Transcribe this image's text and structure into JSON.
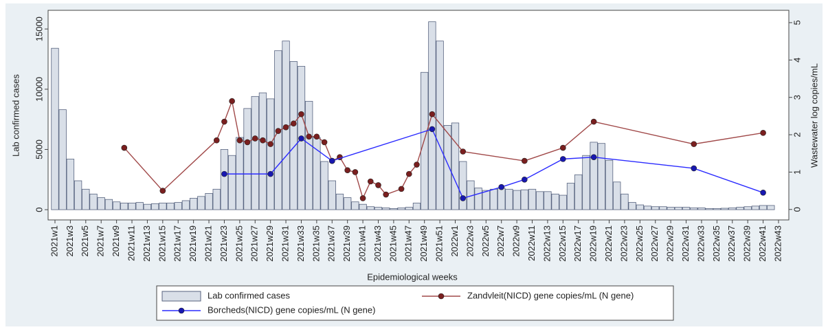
{
  "chart_data": {
    "type": "bar-line",
    "x_label": "Epidemiological weeks",
    "y_label": "Lab confirmed cases",
    "y2_label": "Wastewater log copies/mL",
    "categories": [
      "2021w1",
      null,
      "2021w3",
      null,
      "2021w5",
      null,
      "2021w7",
      null,
      "2021w9",
      null,
      "2021w11",
      null,
      "2021w13",
      null,
      "2021w15",
      null,
      "2021w17",
      null,
      "2021w19",
      null,
      "2021w21",
      null,
      "2021w23",
      null,
      "2021w25",
      null,
      "2021w27",
      null,
      "2021w29",
      null,
      "2021w31",
      null,
      "2021w33",
      null,
      "2021w35",
      null,
      "2021w37",
      null,
      "2021w39",
      null,
      "2021w41",
      null,
      "2021w43",
      null,
      "2021w45",
      null,
      "2021w47",
      null,
      "2021w49",
      null,
      "2021w51",
      null,
      "2022w1",
      null,
      "2022w3",
      null,
      "2022w5",
      null,
      "2022w7",
      null,
      "2022w9",
      null,
      "2022w11",
      null,
      "2022w13",
      null,
      "2022w15",
      null,
      "2022w17",
      null,
      "2022w19",
      null,
      "2022w21",
      null,
      "2022w23",
      null,
      "2022w25",
      null,
      "2022w27",
      null,
      "2022w29",
      null,
      "2022w31",
      null,
      "2022w33",
      null,
      "2022w35",
      null,
      "2022w37",
      null,
      "2022w39",
      null,
      "2022w41",
      null,
      "2022w43"
    ],
    "series": [
      {
        "name": "Lab confirmed cases",
        "kind": "bar",
        "color": "#d9dfe8",
        "edge": "#56627e",
        "axis": "y",
        "values": [
          13400,
          8300,
          4200,
          2400,
          1700,
          1300,
          1000,
          850,
          650,
          550,
          550,
          600,
          450,
          500,
          550,
          550,
          600,
          750,
          950,
          1100,
          1350,
          1700,
          5000,
          4500,
          6000,
          8400,
          9400,
          9700,
          9200,
          13200,
          14000,
          12300,
          11900,
          9000,
          6000,
          4000,
          2400,
          1300,
          1000,
          650,
          450,
          250,
          200,
          150,
          100,
          150,
          200,
          550,
          11400,
          15600,
          14000,
          7000,
          7200,
          4000,
          2400,
          1800,
          1600,
          1700,
          1800,
          1700,
          1600,
          1650,
          1700,
          1500,
          1500,
          1300,
          1200,
          2200,
          2900,
          4500,
          5600,
          5500,
          4100,
          2300,
          1300,
          600,
          400,
          300,
          250,
          250,
          200,
          200,
          200,
          150,
          150,
          100,
          100,
          120,
          150,
          200,
          250,
          300,
          350,
          350,
          null
        ]
      },
      {
        "name": "Zandvleit(NICD) gene copies/mL (N gene)",
        "kind": "line",
        "color": "#a04848",
        "marker": "#7a1f1f",
        "axis": "y2",
        "values": [
          null,
          null,
          null,
          null,
          null,
          null,
          null,
          null,
          null,
          1.65,
          null,
          null,
          null,
          null,
          0.5,
          null,
          null,
          null,
          null,
          null,
          null,
          1.85,
          2.35,
          2.9,
          1.85,
          1.8,
          1.9,
          1.85,
          1.75,
          2.1,
          2.2,
          2.3,
          2.55,
          1.95,
          1.95,
          1.8,
          1.3,
          1.4,
          1.05,
          1.0,
          0.3,
          0.75,
          0.65,
          0.4,
          null,
          0.55,
          0.95,
          1.2,
          null,
          2.55,
          null,
          null,
          null,
          1.55,
          null,
          null,
          null,
          null,
          null,
          null,
          null,
          1.3,
          null,
          null,
          null,
          null,
          1.65,
          null,
          null,
          null,
          2.35,
          null,
          null,
          null,
          null,
          null,
          null,
          null,
          null,
          null,
          null,
          null,
          null,
          1.75,
          null,
          null,
          null,
          null,
          null,
          null,
          null,
          null,
          2.05,
          null,
          null
        ]
      },
      {
        "name": "Borcheds(NICD) gene copies/mL (N gene)",
        "kind": "line",
        "color": "#2a2aff",
        "marker": "#1818b0",
        "axis": "y2",
        "values": [
          null,
          null,
          null,
          null,
          null,
          null,
          null,
          null,
          null,
          null,
          null,
          null,
          null,
          null,
          null,
          null,
          null,
          null,
          null,
          null,
          null,
          null,
          0.95,
          null,
          null,
          null,
          null,
          null,
          0.95,
          null,
          null,
          null,
          1.9,
          null,
          null,
          null,
          1.3,
          null,
          null,
          null,
          null,
          null,
          null,
          null,
          null,
          null,
          null,
          null,
          null,
          2.15,
          null,
          null,
          null,
          0.3,
          null,
          null,
          null,
          null,
          0.6,
          null,
          null,
          0.8,
          null,
          null,
          null,
          null,
          1.35,
          null,
          null,
          null,
          1.4,
          null,
          null,
          null,
          null,
          null,
          null,
          null,
          null,
          null,
          null,
          null,
          null,
          1.1,
          null,
          null,
          null,
          null,
          null,
          null,
          null,
          null,
          0.45,
          null,
          null
        ]
      }
    ],
    "ylim": [
      -850,
      16550
    ],
    "yticks": [
      0,
      5000,
      10000,
      15000
    ],
    "y2lim": [
      -0.28,
      5.33
    ],
    "y2ticks": [
      0,
      1,
      2,
      3,
      4,
      5
    ],
    "grid": false,
    "connect_gaps": true,
    "legend_position": "bottom"
  }
}
